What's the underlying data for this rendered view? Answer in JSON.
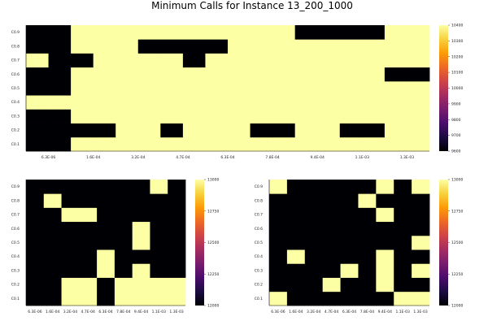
{
  "title": "Minimum Calls for Instance 13_200_1000",
  "colors": {
    "background": "#ffffff",
    "low": "#000004",
    "high": "#fcffa4",
    "colormap": [
      "#000004",
      "#1b0c41",
      "#4a0c6b",
      "#781c6d",
      "#a52c60",
      "#cf4446",
      "#ed6925",
      "#fb9b06",
      "#f7d13d",
      "#fcffa4"
    ]
  },
  "chart_data": [
    {
      "type": "heatmap",
      "title": "",
      "x_ticks": [
        "6.3E-06",
        "1.6E-04",
        "3.2E-04",
        "4.7E-04",
        "6.3E-04",
        "7.8E-04",
        "9.4E-04",
        "1.1E-03",
        "1.3E-03"
      ],
      "y_ticks": [
        "C0.1",
        "C0.2",
        "C0.3",
        "C0.4",
        "C0.5",
        "C0.6",
        "C0.7",
        "C0.8",
        "C0.9"
      ],
      "zlim": [
        9600,
        10400
      ],
      "colorbar_ticks": [
        "9600",
        "9700",
        "9800",
        "9900",
        "10000",
        "10100",
        "10200",
        "10300",
        "10400"
      ],
      "values": [
        [
          9600,
          9600,
          10400,
          10400,
          10400,
          10400,
          10400,
          10400,
          10400,
          10400,
          10400,
          10400,
          10400,
          10400,
          10400,
          10400,
          10400,
          10400
        ],
        [
          9600,
          9600,
          9600,
          9600,
          10400,
          10400,
          9600,
          10400,
          10400,
          10400,
          9600,
          9600,
          10400,
          10400,
          9600,
          9600,
          10400,
          10400
        ],
        [
          9600,
          9600,
          10400,
          10400,
          10400,
          10400,
          10400,
          10400,
          10400,
          10400,
          10400,
          10400,
          10400,
          10400,
          10400,
          10400,
          10400,
          10400
        ],
        [
          10400,
          10400,
          10400,
          10400,
          10400,
          10400,
          10400,
          10400,
          10400,
          10400,
          10400,
          10400,
          10400,
          10400,
          10400,
          10400,
          10400,
          10400
        ],
        [
          9600,
          9600,
          10400,
          10400,
          10400,
          10400,
          10400,
          10400,
          10400,
          10400,
          10400,
          10400,
          10400,
          10400,
          10400,
          10400,
          10400,
          10400
        ],
        [
          9600,
          9600,
          10400,
          10400,
          10400,
          10400,
          10400,
          10400,
          10400,
          10400,
          10400,
          10400,
          10400,
          10400,
          10400,
          10400,
          9600,
          9600
        ],
        [
          10400,
          9600,
          9600,
          10400,
          10400,
          10400,
          10400,
          9600,
          10400,
          10400,
          10400,
          10400,
          10400,
          10400,
          10400,
          10400,
          10400,
          10400
        ],
        [
          9600,
          9600,
          10400,
          10400,
          10400,
          9600,
          9600,
          9600,
          9600,
          10400,
          10400,
          10400,
          10400,
          10400,
          10400,
          10400,
          10400,
          10400
        ],
        [
          9600,
          9600,
          10400,
          10400,
          10400,
          10400,
          10400,
          10400,
          10400,
          10400,
          10400,
          10400,
          9600,
          9600,
          9600,
          9600,
          10400,
          10400
        ]
      ]
    },
    {
      "type": "heatmap",
      "title": "",
      "x_ticks": [
        "6.3E-06",
        "1.6E-04",
        "3.2E-04",
        "4.7E-04",
        "6.3E-04",
        "7.8E-04",
        "9.4E-04",
        "1.1E-03",
        "1.3E-03"
      ],
      "y_ticks": [
        "C0.1",
        "C0.2",
        "C0.3",
        "C0.4",
        "C0.5",
        "C0.6",
        "C0.7",
        "C0.8",
        "C0.9"
      ],
      "zlim": [
        12000,
        13000
      ],
      "colorbar_ticks": [
        "12000",
        "12250",
        "12500",
        "12750",
        "13000"
      ],
      "values": [
        [
          12000,
          12000,
          13000,
          13000,
          12000,
          13000,
          13000,
          13000,
          13000
        ],
        [
          12000,
          12000,
          13000,
          13000,
          12000,
          13000,
          13000,
          13000,
          13000
        ],
        [
          12000,
          12000,
          12000,
          12000,
          13000,
          12000,
          13000,
          12000,
          12000
        ],
        [
          12000,
          12000,
          12000,
          12000,
          13000,
          12000,
          12000,
          12000,
          12000
        ],
        [
          12000,
          12000,
          12000,
          12000,
          12000,
          12000,
          13000,
          12000,
          12000
        ],
        [
          12000,
          12000,
          12000,
          12000,
          12000,
          12000,
          13000,
          12000,
          12000
        ],
        [
          12000,
          12000,
          13000,
          13000,
          12000,
          12000,
          12000,
          12000,
          12000
        ],
        [
          12000,
          13000,
          12000,
          12000,
          12000,
          12000,
          12000,
          12000,
          12000
        ],
        [
          12000,
          12000,
          12000,
          12000,
          12000,
          12000,
          12000,
          13000,
          12000
        ]
      ]
    },
    {
      "type": "heatmap",
      "title": "",
      "x_ticks": [
        "6.3E-06",
        "1.6E-04",
        "3.2E-04",
        "4.7E-04",
        "6.3E-04",
        "7.8E-04",
        "9.4E-04",
        "1.1E-03",
        "1.3E-03"
      ],
      "y_ticks": [
        "C0.1",
        "C0.2",
        "C0.3",
        "C0.4",
        "C0.5",
        "C0.6",
        "C0.7",
        "C0.8",
        "C0.9"
      ],
      "zlim": [
        12000,
        13000
      ],
      "colorbar_ticks": [
        "12000",
        "12250",
        "12500",
        "12750",
        "13000"
      ],
      "values": [
        [
          13000,
          12000,
          12000,
          12000,
          12000,
          12000,
          12000,
          13000,
          13000
        ],
        [
          12000,
          12000,
          12000,
          13000,
          12000,
          12000,
          13000,
          12000,
          12000
        ],
        [
          12000,
          12000,
          12000,
          12000,
          13000,
          12000,
          13000,
          12000,
          13000
        ],
        [
          12000,
          13000,
          12000,
          12000,
          12000,
          12000,
          13000,
          12000,
          12000
        ],
        [
          12000,
          12000,
          12000,
          12000,
          12000,
          12000,
          12000,
          12000,
          13000
        ],
        [
          12000,
          12000,
          12000,
          12000,
          12000,
          12000,
          12000,
          12000,
          12000
        ],
        [
          12000,
          12000,
          12000,
          12000,
          12000,
          12000,
          13000,
          12000,
          12000
        ],
        [
          12000,
          12000,
          12000,
          12000,
          12000,
          13000,
          12000,
          12000,
          12000
        ],
        [
          13000,
          12000,
          12000,
          12000,
          12000,
          12000,
          13000,
          12000,
          13000
        ]
      ]
    }
  ]
}
